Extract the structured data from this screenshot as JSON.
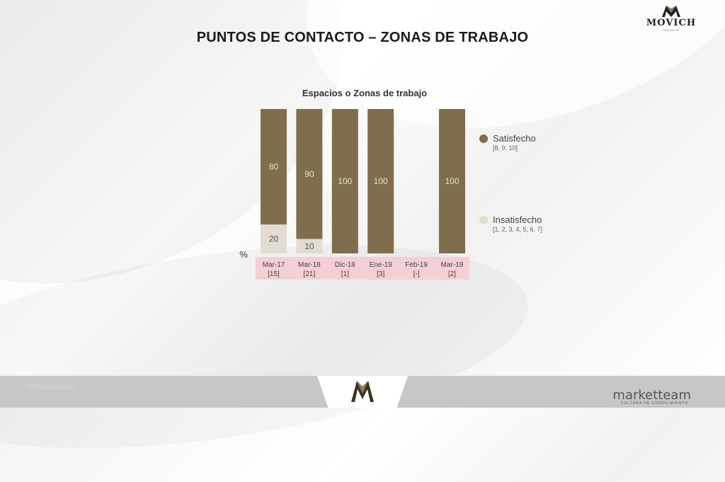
{
  "colors": {
    "satisfied": "#7f6e4c",
    "unsatisfied": "#e3dcd1",
    "category_band": "#f4cfd4",
    "text_dark": "#1a1a1a"
  },
  "brand": {
    "name": "MOVICH",
    "sub": "HOTELS"
  },
  "page_title": "PUNTOS DE CONTACTO – ZONAS DE TRABAJO",
  "footer": {
    "left_text": "15 Confidencial",
    "right_text": "marketteam",
    "right_sub": "CULTURA DE CONOCIMIENTO"
  },
  "chart_data": {
    "type": "bar",
    "stacked": true,
    "title": "Espacios o Zonas de trabajo",
    "ylabel": "%",
    "ylim": [
      0,
      100
    ],
    "categories": [
      "Mar-17",
      "Mar-18",
      "Dic-18",
      "Ene-19",
      "Feb-19",
      "Mar-19"
    ],
    "bases": [
      "[15]",
      "[21]",
      "[1]",
      "[3]",
      "[-]",
      "[2]"
    ],
    "series": [
      {
        "name": "Insatisfecho",
        "scale": "[1, 2, 3, 4, 5, 6, 7]",
        "color": "#e3dcd1",
        "values": [
          20,
          10,
          null,
          null,
          null,
          null
        ]
      },
      {
        "name": "Satisfecho",
        "scale": "[8, 9, 10]",
        "color": "#7f6e4c",
        "values": [
          80,
          90,
          100,
          100,
          null,
          100
        ]
      }
    ],
    "legend_position": "right",
    "grid": false
  }
}
